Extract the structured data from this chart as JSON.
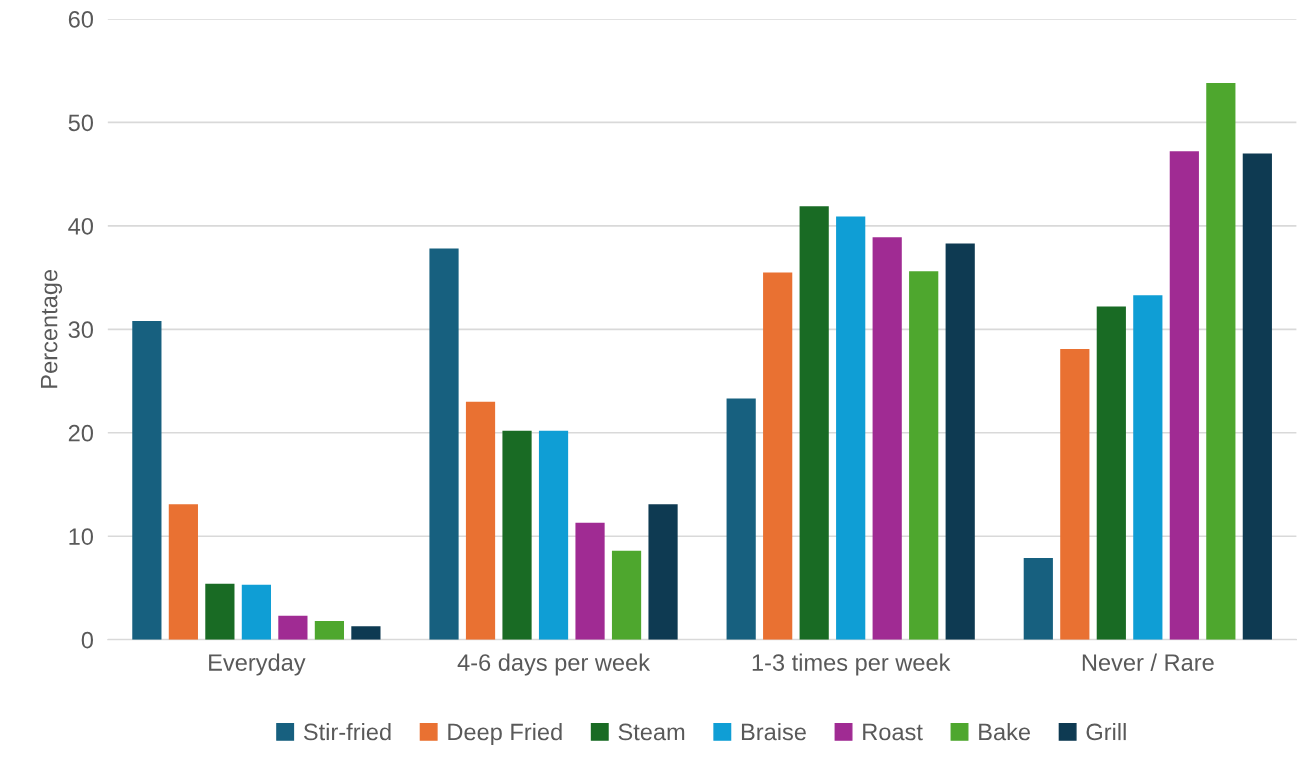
{
  "chart_data": {
    "type": "bar",
    "ylabel": "Percentage",
    "categories": [
      "Everyday",
      "4-6 days per week",
      "1-3 times per week",
      "Never / Rare"
    ],
    "series": [
      {
        "name": "Stir-fried",
        "color": "#17607f",
        "values": [
          30.8,
          37.8,
          23.3,
          7.9
        ]
      },
      {
        "name": "Deep Fried",
        "color": "#e97132",
        "values": [
          13.1,
          23.0,
          35.5,
          28.1
        ]
      },
      {
        "name": "Steam",
        "color": "#196b24",
        "values": [
          5.4,
          20.2,
          41.9,
          32.2
        ]
      },
      {
        "name": "Braise",
        "color": "#0f9ed5",
        "values": [
          5.3,
          20.2,
          40.9,
          33.3
        ]
      },
      {
        "name": "Roast",
        "color": "#a02b93",
        "values": [
          2.3,
          11.3,
          38.9,
          47.2
        ]
      },
      {
        "name": "Bake",
        "color": "#4ea72e",
        "values": [
          1.8,
          8.6,
          35.6,
          53.8
        ]
      },
      {
        "name": "Grill",
        "color": "#0e3a52",
        "values": [
          1.3,
          13.1,
          38.3,
          47.0
        ]
      }
    ],
    "ylim": [
      0,
      60
    ],
    "yticks": [
      0,
      10,
      20,
      30,
      40,
      50,
      60
    ],
    "grid": "y",
    "legend": "bottom"
  }
}
